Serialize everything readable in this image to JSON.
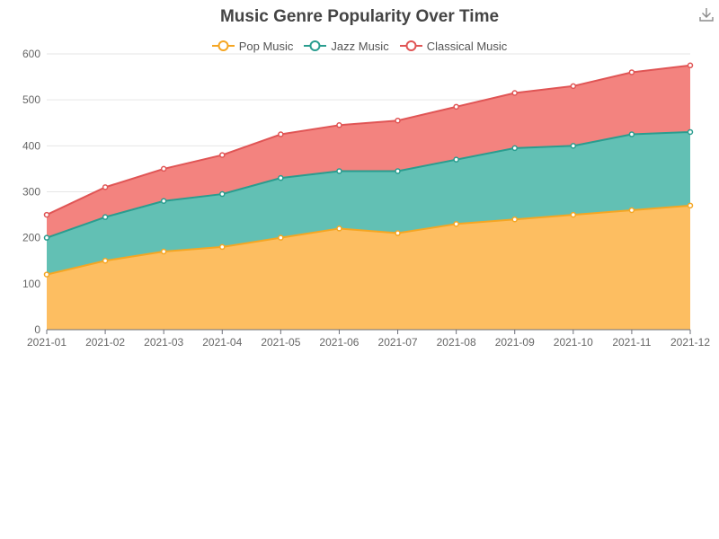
{
  "chart_data": {
    "type": "area",
    "stacked": true,
    "title": "Music Genre Popularity Over Time",
    "xlabel": "",
    "ylabel": "",
    "x": [
      "2021-01",
      "2021-02",
      "2021-03",
      "2021-04",
      "2021-05",
      "2021-06",
      "2021-07",
      "2021-08",
      "2021-09",
      "2021-10",
      "2021-11",
      "2021-12"
    ],
    "ylim": [
      0,
      600
    ],
    "yticks": [
      0,
      100,
      200,
      300,
      400,
      500,
      600
    ],
    "grid": true,
    "legend_position": "top-center",
    "series": [
      {
        "name": "Pop Music",
        "color": "#f5a623",
        "fill": "#fdbe61",
        "values": [
          120,
          150,
          170,
          180,
          200,
          220,
          210,
          230,
          240,
          250,
          260,
          270
        ]
      },
      {
        "name": "Jazz Music",
        "color": "#2a9d8f",
        "fill": "#62c0b4",
        "values": [
          80,
          95,
          110,
          115,
          130,
          125,
          135,
          140,
          155,
          150,
          165,
          160
        ]
      },
      {
        "name": "Classical Music",
        "color": "#e05555",
        "fill": "#f3837f",
        "values": [
          50,
          65,
          70,
          85,
          95,
          100,
          110,
          115,
          120,
          130,
          135,
          145
        ]
      }
    ]
  },
  "toolbox": {
    "icon": "download-icon"
  }
}
